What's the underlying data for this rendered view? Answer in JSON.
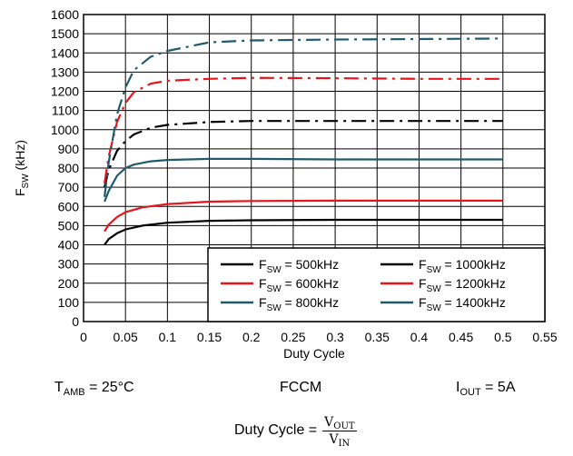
{
  "chart_data": {
    "type": "line",
    "xlabel": "Duty Cycle",
    "ylabel": "F",
    "ylabel_sub": "SW",
    "ylabel_unit": " (kHz)",
    "xlim": [
      0,
      0.55
    ],
    "ylim": [
      0,
      1600
    ],
    "xticks": [
      0,
      0.05,
      0.1,
      0.15,
      0.2,
      0.25,
      0.3,
      0.35,
      0.4,
      0.45,
      0.5,
      0.55
    ],
    "xtick_labels": [
      "0",
      "0.05",
      "0.1",
      "0.15",
      "0.2",
      "0.25",
      "0.3",
      "0.35",
      "0.4",
      "0.45",
      "0.5",
      "0.55"
    ],
    "yticks": [
      0,
      100,
      200,
      300,
      400,
      500,
      600,
      700,
      800,
      900,
      1000,
      1100,
      1200,
      1300,
      1400,
      1500,
      1600
    ],
    "ytick_labels": [
      "0",
      "100",
      "200",
      "300",
      "400",
      "500",
      "600",
      "700",
      "800",
      "900",
      "1000",
      "1100",
      "1200",
      "1300",
      "1400",
      "1500",
      "1600"
    ],
    "grid": true,
    "legend_position": "bottom-right",
    "series": [
      {
        "name": "= 500kHz",
        "prefix": "F",
        "sub": "SW",
        "color": "#000000",
        "dash": "solid",
        "x": [
          0.025,
          0.03,
          0.04,
          0.05,
          0.07,
          0.1,
          0.15,
          0.2,
          0.3,
          0.4,
          0.5
        ],
        "y": [
          400,
          430,
          460,
          480,
          500,
          515,
          525,
          528,
          530,
          530,
          530
        ]
      },
      {
        "name": "= 600kHz",
        "prefix": "F",
        "sub": "SW",
        "color": "#e8141b",
        "dash": "solid",
        "x": [
          0.025,
          0.03,
          0.04,
          0.05,
          0.07,
          0.1,
          0.15,
          0.2,
          0.3,
          0.4,
          0.5
        ],
        "y": [
          470,
          505,
          545,
          570,
          595,
          612,
          625,
          628,
          630,
          630,
          630
        ]
      },
      {
        "name": "= 800kHz",
        "prefix": "F",
        "sub": "SW",
        "color": "#1e5a6e",
        "dash": "solid",
        "x": [
          0.025,
          0.03,
          0.04,
          0.05,
          0.06,
          0.08,
          0.1,
          0.15,
          0.2,
          0.3,
          0.4,
          0.5
        ],
        "y": [
          625,
          680,
          760,
          800,
          818,
          835,
          842,
          848,
          848,
          845,
          845,
          845
        ]
      },
      {
        "name": "= 1000kHz",
        "prefix": "F",
        "sub": "SW",
        "color": "#000000",
        "dash": "dashdot",
        "x": [
          0.025,
          0.03,
          0.04,
          0.05,
          0.06,
          0.08,
          0.1,
          0.15,
          0.2,
          0.3,
          0.4,
          0.5
        ],
        "y": [
          700,
          790,
          890,
          940,
          975,
          1010,
          1025,
          1040,
          1045,
          1045,
          1045,
          1045
        ]
      },
      {
        "name": "= 1200kHz",
        "prefix": "F",
        "sub": "SW",
        "color": "#e8141b",
        "dash": "dashdot",
        "x": [
          0.025,
          0.03,
          0.04,
          0.05,
          0.06,
          0.08,
          0.1,
          0.15,
          0.2,
          0.3,
          0.4,
          0.5
        ],
        "y": [
          720,
          860,
          1040,
          1140,
          1195,
          1240,
          1255,
          1265,
          1270,
          1268,
          1265,
          1265
        ]
      },
      {
        "name": "= 1400kHz",
        "prefix": "F",
        "sub": "SW",
        "color": "#1e5a6e",
        "dash": "dashdot",
        "x": [
          0.025,
          0.03,
          0.04,
          0.05,
          0.06,
          0.08,
          0.1,
          0.15,
          0.2,
          0.3,
          0.4,
          0.5
        ],
        "y": [
          650,
          830,
          1080,
          1220,
          1310,
          1380,
          1410,
          1455,
          1465,
          1470,
          1472,
          1475
        ]
      }
    ]
  },
  "conditions": {
    "tamb": {
      "main": "T",
      "sub": "AMB",
      "rest": " = 25°C"
    },
    "mode": "FCCM",
    "iout": {
      "main": "I",
      "sub": "OUT",
      "rest": " = 5A"
    }
  },
  "formula": {
    "lhs": "Duty Cycle = ",
    "num_main": "V",
    "num_sub": "OUT",
    "den_main": "V",
    "den_sub": "IN"
  }
}
